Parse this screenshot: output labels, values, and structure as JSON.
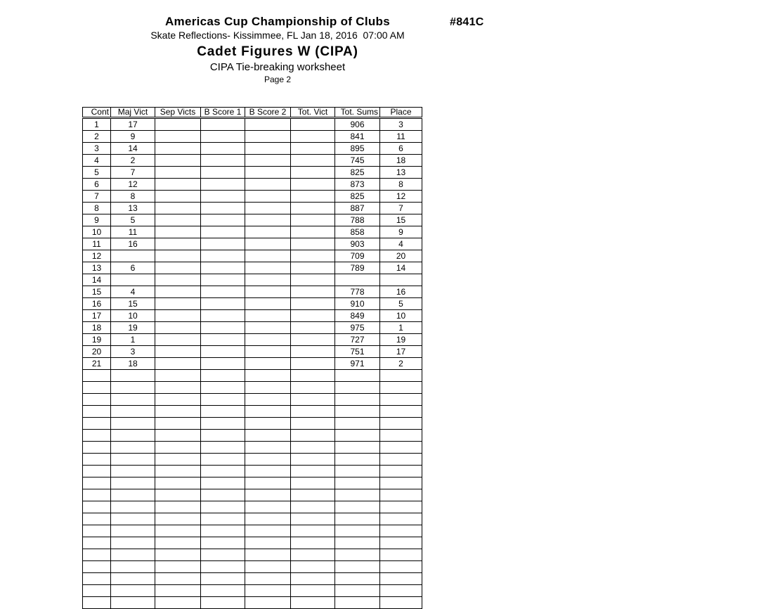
{
  "header": {
    "title": "Americas Cup Championship of Clubs",
    "event_number": "#841C",
    "venue_datetime": "Skate Reflections- Kissimmee, FL Jan 18, 2016  07:00 AM",
    "event_title": "Cadet Figures W (CIPA)",
    "worksheet_title": "CIPA Tie-breaking worksheet",
    "page_label": "Page 2"
  },
  "worksheet_table": {
    "columns": [
      "Cont",
      "Maj Vict",
      "Sep Victs",
      "B Score 1",
      "B Score 2",
      "Tot. Vict",
      "Tot. Sums",
      "Place"
    ],
    "column_keys": [
      "cont",
      "maj_vict",
      "sep_victs",
      "b_score_1",
      "b_score_2",
      "tot_vict",
      "tot_sums",
      "place"
    ],
    "right_aligned_headers": [
      "cont",
      "tot_sums"
    ],
    "rows": [
      [
        "1",
        "17",
        "",
        "",
        "",
        "",
        "906",
        "3"
      ],
      [
        "2",
        "9",
        "",
        "",
        "",
        "",
        "841",
        "11"
      ],
      [
        "3",
        "14",
        "",
        "",
        "",
        "",
        "895",
        "6"
      ],
      [
        "4",
        "2",
        "",
        "",
        "",
        "",
        "745",
        "18"
      ],
      [
        "5",
        "7",
        "",
        "",
        "",
        "",
        "825",
        "13"
      ],
      [
        "6",
        "12",
        "",
        "",
        "",
        "",
        "873",
        "8"
      ],
      [
        "7",
        "8",
        "",
        "",
        "",
        "",
        "825",
        "12"
      ],
      [
        "8",
        "13",
        "",
        "",
        "",
        "",
        "887",
        "7"
      ],
      [
        "9",
        "5",
        "",
        "",
        "",
        "",
        "788",
        "15"
      ],
      [
        "10",
        "11",
        "",
        "",
        "",
        "",
        "858",
        "9"
      ],
      [
        "11",
        "16",
        "",
        "",
        "",
        "",
        "903",
        "4"
      ],
      [
        "12",
        "",
        "",
        "",
        "",
        "",
        "709",
        "20"
      ],
      [
        "13",
        "6",
        "",
        "",
        "",
        "",
        "789",
        "14"
      ],
      [
        "14",
        "",
        "",
        "",
        "",
        "",
        "",
        ""
      ],
      [
        "15",
        "4",
        "",
        "",
        "",
        "",
        "778",
        "16"
      ],
      [
        "16",
        "15",
        "",
        "",
        "",
        "",
        "910",
        "5"
      ],
      [
        "17",
        "10",
        "",
        "",
        "",
        "",
        "849",
        "10"
      ],
      [
        "18",
        "19",
        "",
        "",
        "",
        "",
        "975",
        "1"
      ],
      [
        "19",
        "1",
        "",
        "",
        "",
        "",
        "727",
        "19"
      ],
      [
        "20",
        "3",
        "",
        "",
        "",
        "",
        "751",
        "17"
      ],
      [
        "21",
        "18",
        "",
        "",
        "",
        "",
        "971",
        "2"
      ]
    ],
    "empty_row_count": 20
  },
  "colors": {
    "text": "#000000",
    "background": "#ffffff",
    "grid": "#000000"
  }
}
